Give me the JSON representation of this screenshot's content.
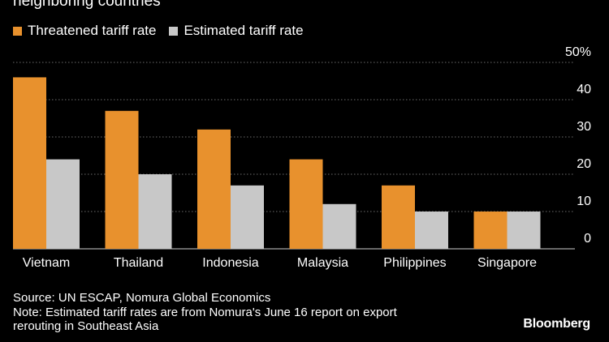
{
  "header": {
    "title_fragment": "neighboring countries"
  },
  "colors": {
    "threatened": "#e8912d",
    "estimated": "#c8c8c8",
    "background": "#000000",
    "grid": "#6b6b6b",
    "text": "#ffffff"
  },
  "chart_data": {
    "type": "bar",
    "categories": [
      "Vietnam",
      "Thailand",
      "Indonesia",
      "Malaysia",
      "Philippines",
      "Singapore"
    ],
    "series": [
      {
        "name": "Threatened tariff rate",
        "values": [
          46,
          37,
          32,
          24,
          17,
          10
        ]
      },
      {
        "name": "Estimated tariff rate",
        "values": [
          24,
          20,
          17,
          12,
          10,
          10
        ]
      }
    ],
    "y_ticks": [
      "0",
      "10",
      "20",
      "30",
      "40",
      "50%"
    ],
    "y_tick_values": [
      0,
      10,
      20,
      30,
      40,
      50
    ],
    "ylim": [
      0,
      50
    ],
    "grid": true,
    "legend_position": "top-left"
  },
  "footer": {
    "source": "Source: UN ESCAP, Nomura Global Economics",
    "note_line1": "Note: Estimated tariff rates are from Nomura's June 16 report on export",
    "note_line2": "rerouting in Southeast Asia",
    "brand": "Bloomberg"
  }
}
